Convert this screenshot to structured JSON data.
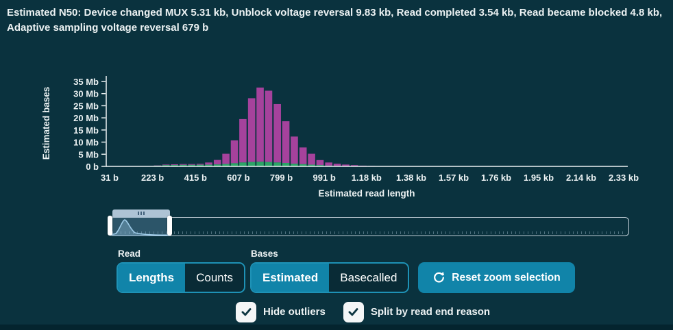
{
  "title": "Estimated N50: Device changed MUX 5.31 kb, Unblock voltage reversal 9.83 kb, Read completed 3.54 kb, Read became blocked 4.8 kb, Adaptive sampling voltage reversal 679 b",
  "chart_data": {
    "type": "bar",
    "stacked": true,
    "title": "",
    "xlabel": "Estimated read length",
    "ylabel": "Estimated bases",
    "xlim": [
      31,
      2360
    ],
    "ylim": [
      0,
      35
    ],
    "grid": false,
    "legend": "none",
    "x_tick_values": [
      31,
      223,
      415,
      607,
      799,
      991,
      1180,
      1380,
      1570,
      1760,
      1950,
      2140,
      2330
    ],
    "x_tick_labels": [
      "31 b",
      "223 b",
      "415 b",
      "607 b",
      "799 b",
      "991 b",
      "1.18 kb",
      "1.38 kb",
      "1.57 kb",
      "1.76 kb",
      "1.95 kb",
      "2.14 kb",
      "2.33 kb"
    ],
    "y_tick_values": [
      0,
      5,
      10,
      15,
      20,
      25,
      30,
      35
    ],
    "y_tick_labels": [
      "0 b",
      "5 Mb",
      "10 Mb",
      "15 Mb",
      "20 Mb",
      "25 Mb",
      "30 Mb",
      "35 Mb"
    ],
    "y_unit": "Mb",
    "bin_width_b": 38,
    "x": [
      245,
      283,
      321,
      360,
      398,
      436,
      474,
      513,
      551,
      589,
      627,
      666,
      704,
      742,
      781,
      819,
      857,
      896,
      934,
      972,
      1011,
      1049,
      1087,
      1126,
      1164,
      1202,
      1241
    ],
    "series": [
      {
        "name": "green",
        "color": "#2ba566",
        "values": [
          0.3,
          0.5,
          0.55,
          0.6,
          0.6,
          0.65,
          0.7,
          0.8,
          1.0,
          1.3,
          1.6,
          1.8,
          1.9,
          1.8,
          1.6,
          1.4,
          1.1,
          0.9,
          0.7,
          0.5,
          0.3,
          0.2,
          0.15,
          0.1,
          0.05,
          0.05,
          0
        ]
      },
      {
        "name": "magenta",
        "color": "#a5429c",
        "values": [
          0.1,
          0.25,
          0.3,
          0.35,
          0.35,
          0.4,
          0.9,
          1.85,
          4.2,
          9.4,
          17.9,
          26.3,
          30.6,
          29.4,
          24.1,
          17.2,
          11.2,
          6.9,
          4.5,
          2.1,
          1.3,
          0.9,
          0.6,
          0.4,
          0.25,
          0.15,
          0.1
        ]
      }
    ]
  },
  "controls": {
    "read_label": "Read",
    "read_options": [
      {
        "label": "Lengths",
        "selected": true
      },
      {
        "label": "Counts",
        "selected": false
      }
    ],
    "bases_label": "Bases",
    "bases_options": [
      {
        "label": "Estimated",
        "selected": true
      },
      {
        "label": "Basecalled",
        "selected": false
      }
    ],
    "reset_button": "Reset zoom selection"
  },
  "checkboxes": [
    {
      "label": "Hide outliers",
      "checked": true
    },
    {
      "label": "Split by read end reason",
      "checked": true
    }
  ],
  "colors": {
    "background": "#0a323e",
    "accent_teal": "#1184a9",
    "toggle_border": "#1e92b6",
    "bar_magenta": "#a5429c",
    "bar_green": "#2ba566",
    "text": "#ecf2f3",
    "slider_handle": "#ffffff",
    "slider_top_handle": "#aec3d5"
  }
}
